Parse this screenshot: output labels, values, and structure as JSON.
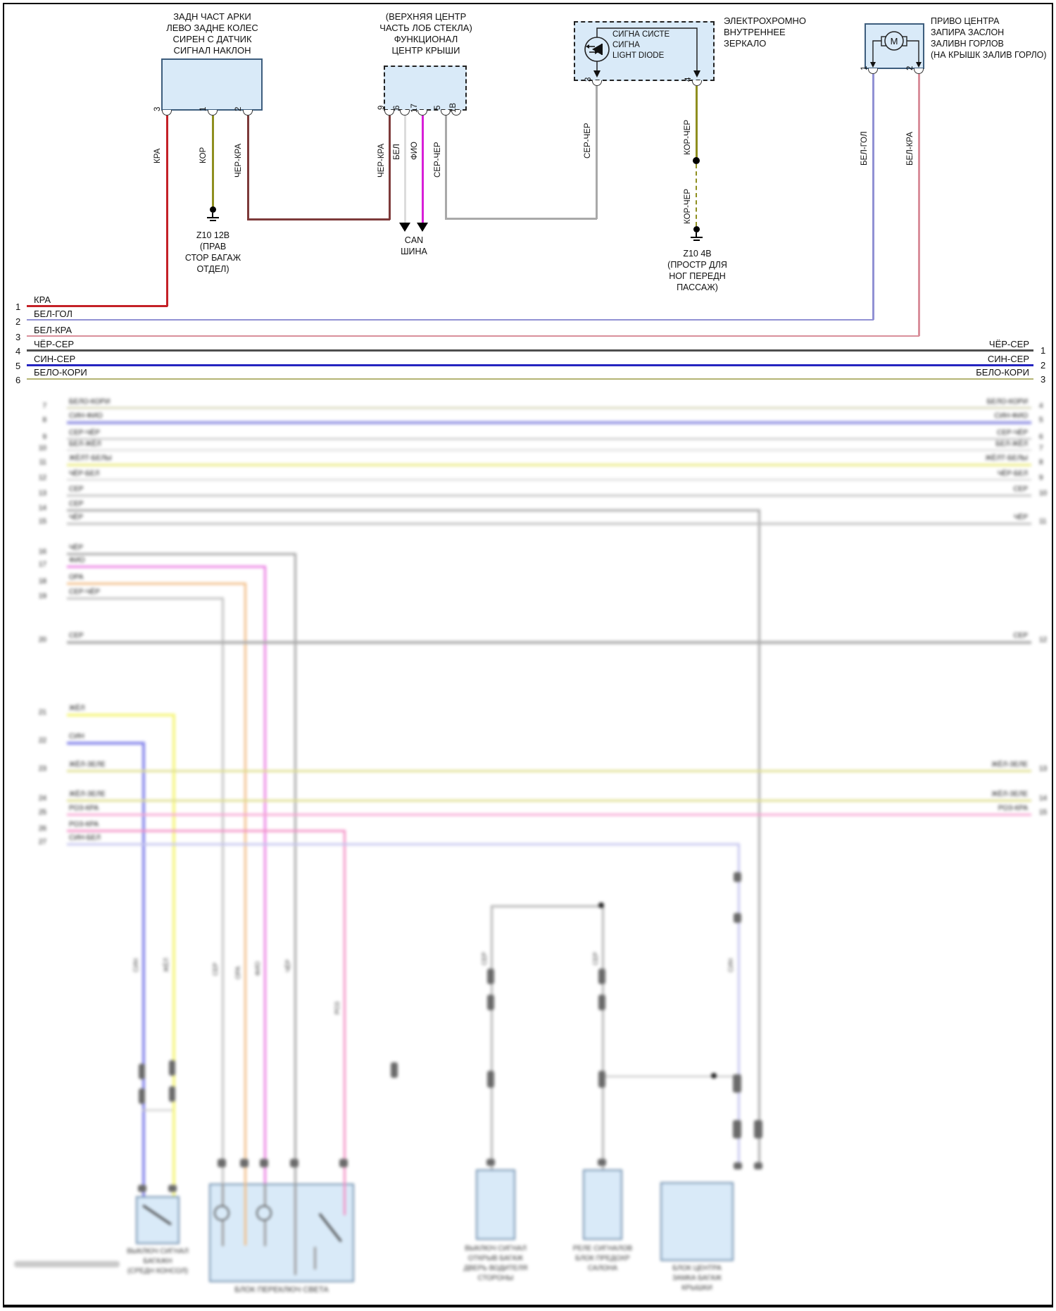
{
  "accent_colors": {
    "component_fill": "#d9eaf8",
    "component_border": "#3d5d7d",
    "wire_red": "#c42127",
    "wire_brown": "#8f8f1f",
    "wire_black_red": "#7d3a3a",
    "wire_white": "#dcdcdc",
    "wire_violet_fio": "#d81fd8",
    "wire_gray": "#a9a9a9",
    "wire_white_blue": "#9191d4",
    "wire_white_red": "#d98f9b",
    "wire_black_gray": "#4f4f4f",
    "wire_blue_gray": "#2424c0",
    "wire_white_brown": "#b4b474"
  },
  "c1": {
    "title": "ЗАДН ЧАСТ АРКИ\nЛЕВО ЗАДНЕ КОЛЕС\nСИРЕН С ДАТЧИК\nСИГНАЛ НАКЛОН",
    "pins": [
      {
        "n": "3",
        "wire": "КРА"
      },
      {
        "n": "1",
        "wire": "КОР"
      },
      {
        "n": "2",
        "wire": "ЧЁР-КРА"
      }
    ]
  },
  "c2": {
    "title": "(ВЕРХНЯЯ ЦЕНТР\nЧАСТЬ ЛОБ СТЕКЛА)\nФУНКЦИОНАЛ\nЦЕНТР КРЫШИ",
    "pins": [
      {
        "n": "9",
        "wire": "ЧЁР-КРА"
      },
      {
        "n": "6",
        "wire": "БЕЛ"
      },
      {
        "n": "17",
        "wire": "ФИО"
      },
      {
        "n": "5",
        "wire": "СЕР-ЧЁР"
      },
      {
        "n": "1В",
        "wire": ""
      }
    ]
  },
  "c3": {
    "inner": "СИГНА СИСТЕ\nСИГНА\nLIGHT DIODE",
    "side_title": "ЭЛЕКТРОХРОМНО\nВНУТРЕННЕЕ\nЗЕРКАЛО",
    "pins": [
      {
        "n": "3",
        "wire": "СЕР-ЧЁР"
      },
      {
        "n": "4",
        "wire": "КОР-ЧЁР"
      }
    ],
    "dashed_wire_label": "КОР-ЧЁР"
  },
  "c4": {
    "title": "ПРИВО ЦЕНТРА\nЗАПИРА ЗАСЛОН\nЗАЛИВН ГОРЛОВ\n(НА КРЫШК ЗАЛИВ ГОРЛО)",
    "motor_letter": "M",
    "pins": [
      {
        "n": "1",
        "wire": "БЕЛ-ГОЛ"
      },
      {
        "n": "2",
        "wire": "БЕЛ-КРА"
      }
    ]
  },
  "grounds": [
    {
      "name": "Z10 12В",
      "note": "(ПРАВ\nСТОР БАГАЖ\nОТДЕЛ)"
    },
    {
      "name": "Z10 4В",
      "note": "(ПРОСТР ДЛЯ\nНОГ ПЕРЕДН\nПАССАЖ)"
    }
  ],
  "can": {
    "line1": "CAN",
    "line2": "ШИНА"
  },
  "bus": {
    "left": [
      {
        "n": "1",
        "label": "КРА"
      },
      {
        "n": "2",
        "label": "БЕЛ-ГОЛ"
      },
      {
        "n": "3",
        "label": "БЕЛ-КРА"
      },
      {
        "n": "4",
        "label": "ЧЁР-СЕР"
      },
      {
        "n": "5",
        "label": "СИН-СЕР"
      },
      {
        "n": "6",
        "label": "БЕЛО-КОРИ"
      }
    ],
    "right": [
      {
        "n": "1",
        "label": "ЧЁР-СЕР"
      },
      {
        "n": "2",
        "label": "СИН-СЕР"
      },
      {
        "n": "3",
        "label": "БЕЛО-КОРИ"
      }
    ]
  },
  "blurred": {
    "rows": [
      {
        "ln": "7",
        "label": "БЕЛО-КОРИ",
        "rn": "4",
        "rlabel": "БЕЛО-КОРИ"
      },
      {
        "ln": "8",
        "label": "СИН-ФИО",
        "rn": "5",
        "rlabel": "СИН-ФИО"
      },
      {
        "ln": "9",
        "label": "СЕР-ЧЁР",
        "rn": "6",
        "rlabel": "СЕР-ЧЁР"
      },
      {
        "ln": "10",
        "label": "БЕЛ-ЖЁЛ",
        "rn": "7",
        "rlabel": "БЕЛ-ЖЁЛ"
      },
      {
        "ln": "11",
        "label": "ЖЁЛТ-БЕЛЫ",
        "rn": "8",
        "rlabel": "ЖЁЛТ-БЕЛЫ"
      },
      {
        "ln": "12",
        "label": "ЧЁР-БЕЛ",
        "rn": "9",
        "rlabel": "ЧЁР-БЕЛ"
      },
      {
        "ln": "13",
        "label": "СЕР",
        "rn": "10",
        "rlabel": "СЕР"
      },
      {
        "ln": "14",
        "label": "СЕР",
        "rn": "",
        "rlabel": ""
      },
      {
        "ln": "15",
        "label": "ЧЁР",
        "rn": "11",
        "rlabel": "ЧЁР"
      },
      {
        "ln": "16",
        "label": "ЧЁР",
        "rn": "",
        "rlabel": ""
      },
      {
        "ln": "17",
        "label": "ФИО",
        "rn": "",
        "rlabel": ""
      },
      {
        "ln": "18",
        "label": "ОРА",
        "rn": "",
        "rlabel": ""
      },
      {
        "ln": "19",
        "label": "СЕР-ЧЁР",
        "rn": "",
        "rlabel": ""
      },
      {
        "ln": "20",
        "label": "СЕР",
        "rn": "12",
        "rlabel": "СЕР"
      },
      {
        "ln": "21",
        "label": "ЖЁЛ",
        "rn": "",
        "rlabel": ""
      },
      {
        "ln": "22",
        "label": "СИН",
        "rn": "",
        "rlabel": ""
      },
      {
        "ln": "23",
        "label": "ЖЁЛ-ЗЕЛЕ",
        "rn": "13",
        "rlabel": "ЖЁЛ-ЗЕЛЕ"
      },
      {
        "ln": "24",
        "label": "ЖЁЛ-ЗЕЛЕ",
        "rn": "14",
        "rlabel": "ЖЁЛ-ЗЕЛЕ"
      },
      {
        "ln": "25",
        "label": "РОЗ-КРА",
        "rn": "15",
        "rlabel": "РОЗ-КРА"
      },
      {
        "ln": "26",
        "label": "РОЗ-КРА",
        "rn": "",
        "rlabel": ""
      },
      {
        "ln": "27",
        "label": "СИН-БЕЛ",
        "rn": "",
        "rlabel": ""
      }
    ],
    "wire_tags": [
      "СИН",
      "ЖЁЛ",
      "СЕР",
      "ОРА",
      "ФИО",
      "ЧЁР",
      "РОЗ",
      "СЕР",
      "СЕР",
      "СИН"
    ],
    "captions": {
      "box1": "ВЫКЛЮЧ СИГНАЛ\nБАГАЖН\n(СРЕДН КОНСОЛ)",
      "bigbox": "БЛОК ПЕРЕКЛЮЧ СВЕТА",
      "box2": "ВЫКЛЮЧ СИГНАЛ\nОТКРЫВ БАГАЖ\nДВЕРЬ ВОДИТЕЛЯ\nСТОРОНЫ",
      "box3": "РЕЛЕ СИГНАЛОВ\nБЛОК ПРЕДОХР\nСАЛОНА",
      "box4": "БЛОК ЦЕНТРА\nЗАМКА БАГАЖ\nКРЫШКИ"
    }
  }
}
